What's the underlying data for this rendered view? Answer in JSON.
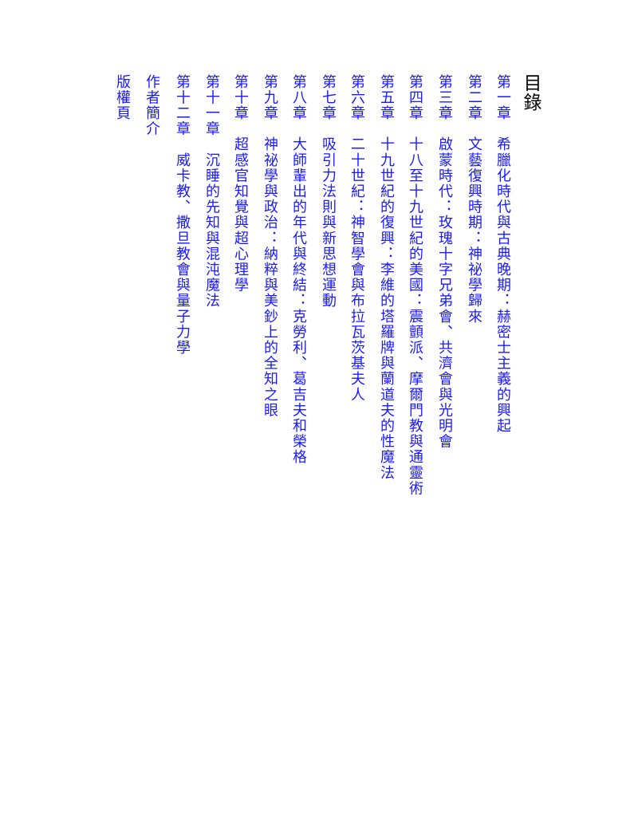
{
  "toc": {
    "title": "目錄",
    "link_color": "#1a1aff",
    "entries": [
      "第一章　希臘化時代與古典晚期：赫密士主義的興起",
      "第二章　文藝復興時期：神祕學歸來",
      "第三章　啟蒙時代：玫瑰十字兄弟會、共濟會與光明會",
      "第四章　十八至十九世紀的美國：震顫派、摩爾門教與通靈術",
      "第五章　十九世紀的復興：李維的塔羅牌與蘭道夫的性魔法",
      "第六章　二十世紀：神智學會與布拉瓦茨基夫人",
      "第七章　吸引力法則與新思想運動",
      "第八章　大師輩出的年代與終結：克勞利、葛吉夫和榮格",
      "第九章　神祕學與政治：納粹與美鈔上的全知之眼",
      "第十章　超感官知覺與超心理學",
      "第十一章　沉睡的先知與混沌魔法",
      "第十二章　威卡教、撒旦教會與量子力學",
      "作者簡介",
      "版權頁"
    ]
  }
}
